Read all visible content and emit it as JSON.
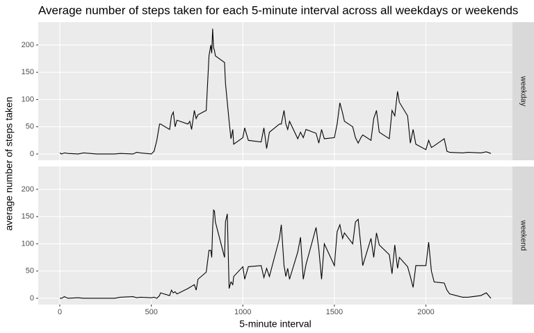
{
  "chart_data": {
    "type": "line",
    "facet": true,
    "title": "Average number of steps taken for each 5-minute interval across all weekdays or weekends",
    "x_label": "5-minute interval",
    "y_label": "average number of steps taken",
    "xlim": [
      -117.75,
      2472.75
    ],
    "ylim": [
      -11.5,
      241.9
    ],
    "xticks": [
      0,
      500,
      1000,
      1500,
      2000
    ],
    "yticks": [
      0,
      50,
      100,
      150,
      200
    ],
    "grid": true,
    "x": [
      0,
      10,
      25,
      45,
      100,
      130,
      200,
      300,
      330,
      400,
      420,
      440,
      500,
      515,
      530,
      545,
      550,
      600,
      610,
      620,
      630,
      640,
      700,
      710,
      720,
      735,
      745,
      755,
      800,
      815,
      825,
      830,
      835,
      840,
      845,
      850,
      900,
      905,
      915,
      925,
      935,
      945,
      950,
      1000,
      1010,
      1030,
      1100,
      1115,
      1130,
      1145,
      1200,
      1210,
      1225,
      1235,
      1245,
      1255,
      1300,
      1315,
      1330,
      1345,
      1400,
      1415,
      1430,
      1445,
      1500,
      1515,
      1530,
      1545,
      1555,
      1600,
      1615,
      1630,
      1645,
      1655,
      1700,
      1715,
      1730,
      1745,
      1800,
      1815,
      1830,
      1845,
      1855,
      1900,
      1915,
      1930,
      1945,
      2000,
      2015,
      2030,
      2045,
      2100,
      2115,
      2130,
      2200,
      2230,
      2300,
      2330,
      2355
    ],
    "series": [
      {
        "name": "weekday",
        "color": "#000000",
        "values": [
          2,
          0,
          2,
          1,
          0,
          2,
          0,
          0,
          1,
          0,
          3,
          2,
          0,
          5,
          25,
          55,
          55,
          45,
          70,
          77,
          50,
          62,
          55,
          60,
          45,
          80,
          65,
          72,
          80,
          180,
          200,
          185,
          230,
          195,
          190,
          180,
          168,
          130,
          95,
          60,
          28,
          45,
          18,
          30,
          48,
          25,
          22,
          48,
          10,
          40,
          55,
          55,
          80,
          55,
          45,
          60,
          28,
          40,
          30,
          45,
          38,
          20,
          45,
          28,
          30,
          55,
          94,
          75,
          60,
          50,
          30,
          20,
          30,
          35,
          25,
          65,
          80,
          40,
          28,
          80,
          70,
          115,
          95,
          70,
          20,
          45,
          18,
          8,
          25,
          12,
          15,
          28,
          5,
          3,
          2,
          3,
          2,
          4,
          1
        ]
      },
      {
        "name": "weekend",
        "color": "#000000",
        "values": [
          0,
          0,
          3,
          0,
          1,
          0,
          0,
          0,
          2,
          3,
          1,
          2,
          1,
          2,
          0,
          5,
          10,
          5,
          15,
          10,
          12,
          8,
          18,
          20,
          22,
          25,
          15,
          35,
          48,
          88,
          88,
          75,
          130,
          162,
          160,
          140,
          75,
          140,
          155,
          18,
          30,
          25,
          40,
          58,
          35,
          58,
          60,
          38,
          55,
          40,
          110,
          135,
          60,
          40,
          55,
          35,
          85,
          112,
          35,
          62,
          130,
          90,
          35,
          100,
          60,
          122,
          135,
          110,
          120,
          100,
          140,
          145,
          95,
          60,
          110,
          75,
          120,
          98,
          80,
          45,
          98,
          55,
          75,
          58,
          40,
          20,
          60,
          60,
          103,
          50,
          30,
          28,
          15,
          8,
          2,
          2,
          5,
          10,
          0
        ]
      }
    ]
  }
}
